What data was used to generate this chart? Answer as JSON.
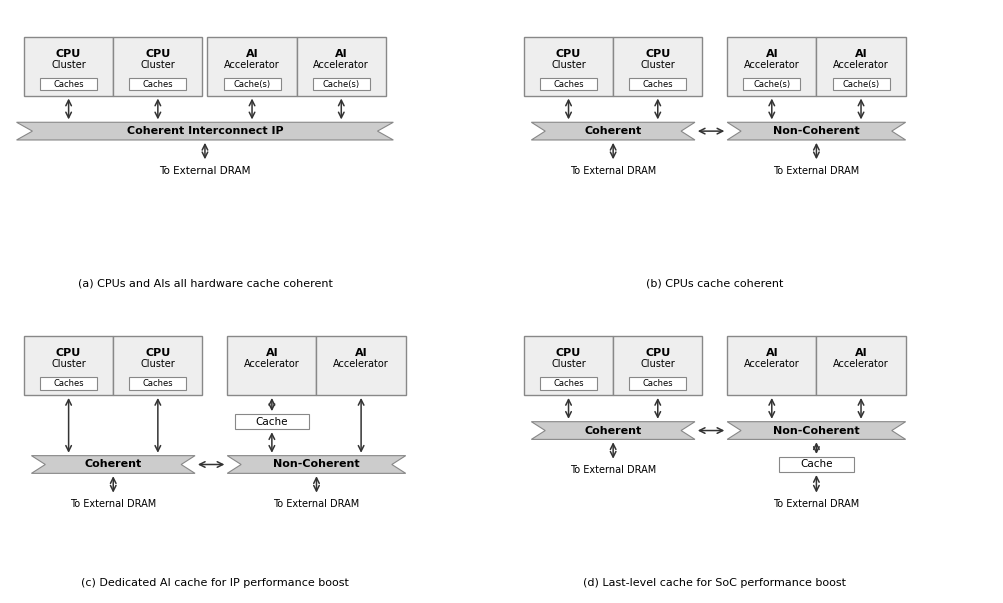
{
  "bg_color": "#ffffff",
  "box_fill": "#eeeeee",
  "banner_fill": "#cccccc",
  "text_color": "#000000",
  "caption_a": "(a) CPUs and AIs all hardware cache coherent",
  "caption_b": "(b) CPUs cache coherent",
  "caption_c": "(c) Dedicated AI cache for IP performance boost",
  "caption_d": "(d) Last-level cache for SoC performance boost"
}
